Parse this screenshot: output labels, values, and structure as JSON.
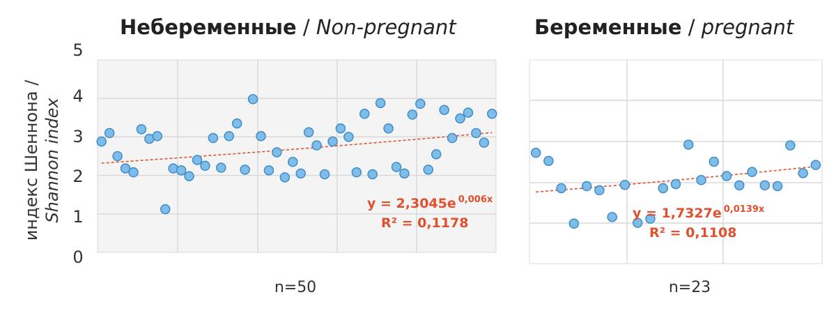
{
  "panels": {
    "left": {
      "title_bold": "Небеременные",
      "title_sep": " / ",
      "title_italic": "Non-pregnant",
      "n_label": "n=50"
    },
    "right": {
      "title_bold": "Беременные",
      "title_sep": " / ",
      "title_italic": "pregnant",
      "n_label": "n=23"
    }
  },
  "y_axis": {
    "label_line1": "индекс Шеннона /",
    "label_line2": "Shannon index",
    "ticks": [
      "5",
      "4",
      "3",
      "2",
      "1",
      "0"
    ]
  },
  "colors": {
    "point_fill": "#7fbce8",
    "point_stroke": "#3d8cc9",
    "trend": "#e0502e",
    "grid": "#d9d9d9",
    "plot_bg": "#f4f4f4"
  },
  "chart_data": [
    {
      "type": "scatter",
      "title": "Небеременные / Non-pregnant",
      "xlabel": "n=50",
      "ylabel": "индекс Шеннона / Shannon index",
      "xlim": [
        0.5,
        50.5
      ],
      "ylim": [
        0,
        5
      ],
      "grid": true,
      "x": [
        1,
        2,
        3,
        4,
        5,
        6,
        7,
        8,
        9,
        10,
        11,
        12,
        13,
        14,
        15,
        16,
        17,
        18,
        19,
        20,
        21,
        22,
        23,
        24,
        25,
        26,
        27,
        28,
        29,
        30,
        31,
        32,
        33,
        34,
        35,
        36,
        37,
        38,
        39,
        40,
        41,
        42,
        43,
        44,
        45,
        46,
        47,
        48,
        49,
        50
      ],
      "y": [
        2.88,
        3.1,
        2.5,
        2.18,
        2.08,
        3.2,
        2.95,
        3.02,
        1.12,
        2.18,
        2.13,
        1.98,
        2.4,
        2.25,
        2.97,
        2.2,
        3.02,
        3.35,
        2.15,
        3.98,
        3.02,
        2.13,
        2.6,
        1.95,
        2.35,
        2.05,
        3.12,
        2.78,
        2.03,
        2.88,
        3.22,
        3.0,
        2.08,
        3.6,
        2.03,
        3.88,
        3.22,
        2.22,
        2.05,
        3.58,
        3.86,
        2.15,
        2.55,
        3.7,
        2.97,
        3.48,
        3.63,
        3.1,
        2.85,
        3.6
      ],
      "trendline": {
        "type": "exponential",
        "a": 2.3045,
        "b": 0.006
      },
      "equation": "y = 2,3045e",
      "equation_exp": "0,006x",
      "r2": "R² = 0,1178"
    },
    {
      "type": "scatter",
      "title": "Беременные / pregnant",
      "xlabel": "n=23",
      "ylabel": "индекс Шеннона / Shannon index",
      "xlim": [
        0.5,
        23.5
      ],
      "ylim": [
        0,
        5
      ],
      "grid": true,
      "x": [
        1,
        2,
        3,
        4,
        5,
        6,
        7,
        8,
        9,
        10,
        11,
        12,
        13,
        14,
        15,
        16,
        17,
        18,
        19,
        20,
        21,
        22,
        23
      ],
      "y": [
        2.72,
        2.52,
        1.85,
        0.98,
        1.9,
        1.8,
        1.14,
        1.93,
        1.0,
        1.1,
        1.85,
        1.95,
        2.92,
        2.05,
        2.5,
        2.15,
        1.92,
        2.25,
        1.92,
        1.9,
        2.9,
        2.22,
        2.42
      ],
      "trendline": {
        "type": "exponential",
        "a": 1.7327,
        "b": 0.0139
      },
      "equation": "y = 1,7327e",
      "equation_exp": "0,0139x",
      "r2": "R² = 0,1108"
    }
  ]
}
